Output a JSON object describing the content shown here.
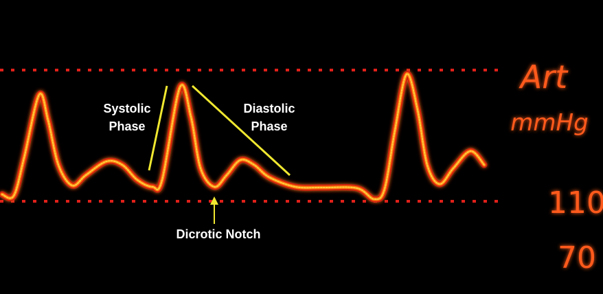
{
  "annotations": {
    "systolic": [
      "Systolic",
      "Phase"
    ],
    "diastolic": [
      "Diastolic",
      "Phase"
    ],
    "notch": "Dicrotic Notch"
  },
  "monitor": {
    "label": "Art",
    "unit": "mmHg",
    "high": "110",
    "low": "70"
  }
}
